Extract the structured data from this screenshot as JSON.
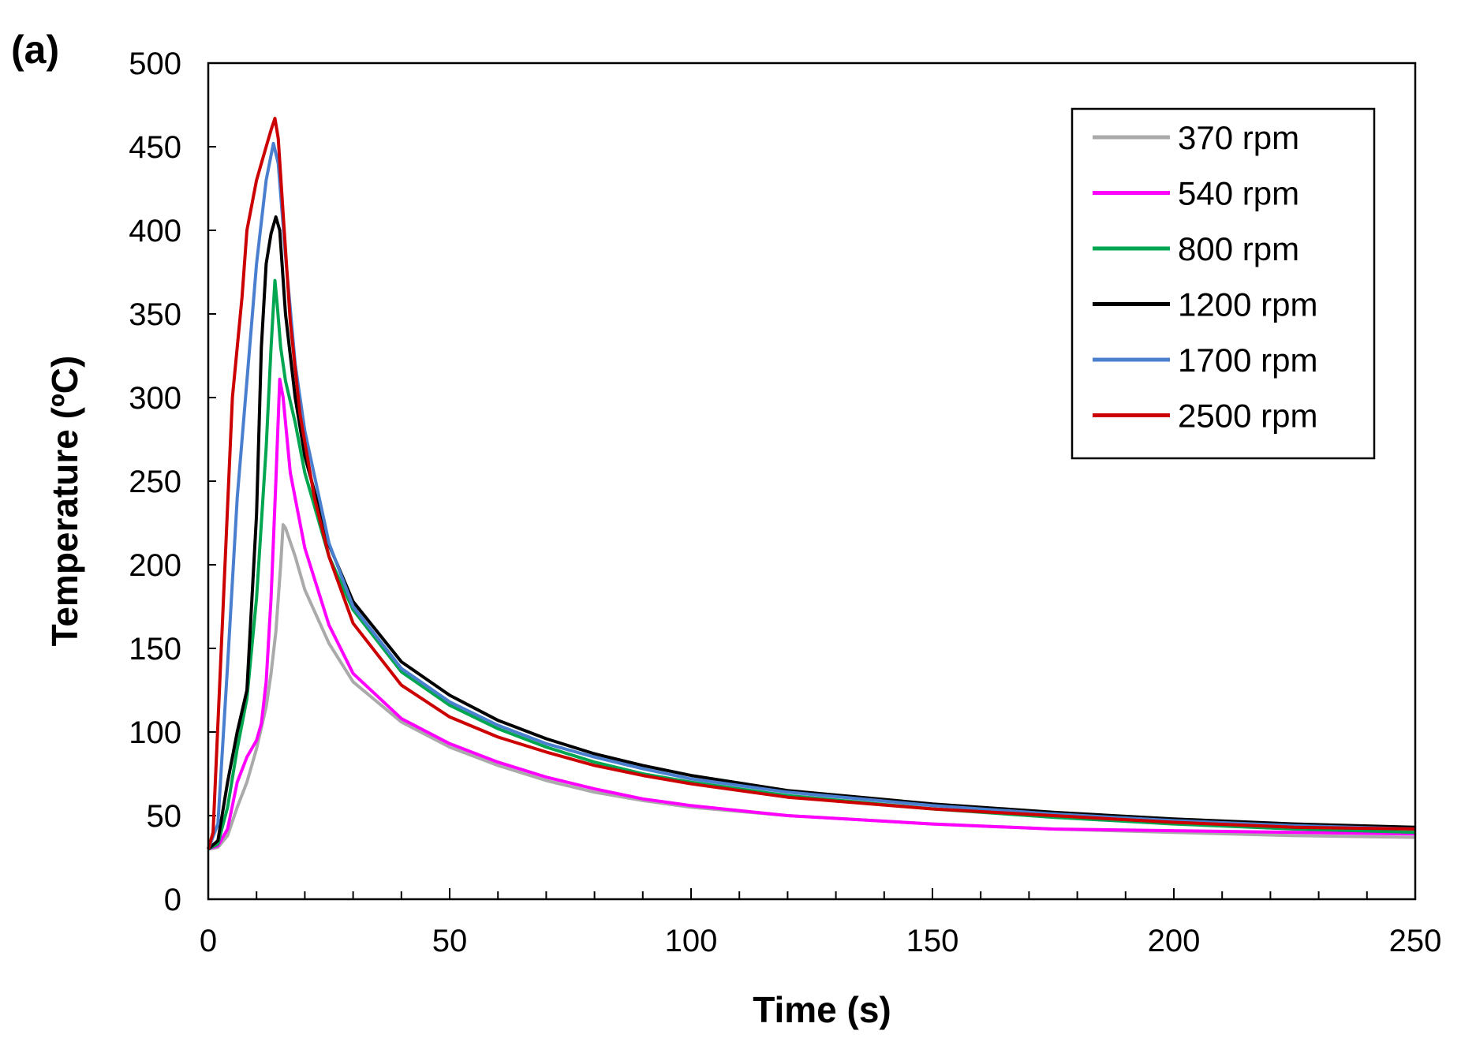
{
  "panel_label": "(a)",
  "chart_data": {
    "type": "line",
    "title": "",
    "xlabel": "Time (s)",
    "ylabel": "Temperature (ºC)",
    "xlim": [
      0,
      250
    ],
    "ylim": [
      0,
      500
    ],
    "xticks": [
      0,
      50,
      100,
      150,
      200,
      250
    ],
    "yticks": [
      0,
      50,
      100,
      150,
      200,
      250,
      300,
      350,
      400,
      450,
      500
    ],
    "x_minor_step": 10,
    "grid": false,
    "legend_position": "top-right",
    "series": [
      {
        "name": "370 rpm",
        "color": "#aaaaaa",
        "points": [
          [
            0,
            30
          ],
          [
            2,
            31
          ],
          [
            4,
            38
          ],
          [
            6,
            55
          ],
          [
            8,
            70
          ],
          [
            10,
            90
          ],
          [
            12,
            115
          ],
          [
            13,
            135
          ],
          [
            14,
            160
          ],
          [
            15,
            200
          ],
          [
            15.5,
            224
          ],
          [
            16,
            222
          ],
          [
            18,
            205
          ],
          [
            20,
            185
          ],
          [
            25,
            153
          ],
          [
            30,
            130
          ],
          [
            40,
            106
          ],
          [
            50,
            91
          ],
          [
            60,
            80
          ],
          [
            70,
            71
          ],
          [
            80,
            64
          ],
          [
            90,
            59
          ],
          [
            100,
            55
          ],
          [
            120,
            50
          ],
          [
            150,
            45
          ],
          [
            175,
            42
          ],
          [
            200,
            40
          ],
          [
            225,
            38
          ],
          [
            250,
            37
          ]
        ]
      },
      {
        "name": "540 rpm",
        "color": "#ff00ff",
        "points": [
          [
            0,
            30
          ],
          [
            2,
            32
          ],
          [
            4,
            42
          ],
          [
            6,
            70
          ],
          [
            8,
            85
          ],
          [
            10,
            95
          ],
          [
            11,
            105
          ],
          [
            12,
            130
          ],
          [
            13,
            180
          ],
          [
            14,
            250
          ],
          [
            14.8,
            311
          ],
          [
            15.5,
            300
          ],
          [
            17,
            255
          ],
          [
            20,
            210
          ],
          [
            25,
            164
          ],
          [
            30,
            135
          ],
          [
            40,
            108
          ],
          [
            50,
            93
          ],
          [
            60,
            82
          ],
          [
            70,
            73
          ],
          [
            80,
            66
          ],
          [
            90,
            60
          ],
          [
            100,
            56
          ],
          [
            120,
            50
          ],
          [
            150,
            45
          ],
          [
            175,
            42
          ],
          [
            200,
            41
          ],
          [
            225,
            40
          ],
          [
            250,
            39
          ]
        ]
      },
      {
        "name": "800 rpm",
        "color": "#00a650",
        "points": [
          [
            0,
            30
          ],
          [
            2,
            33
          ],
          [
            4,
            55
          ],
          [
            6,
            90
          ],
          [
            8,
            120
          ],
          [
            10,
            180
          ],
          [
            12,
            270
          ],
          [
            13,
            330
          ],
          [
            13.8,
            370
          ],
          [
            14.3,
            355
          ],
          [
            15,
            330
          ],
          [
            16,
            310
          ],
          [
            18,
            285
          ],
          [
            20,
            255
          ],
          [
            25,
            205
          ],
          [
            30,
            173
          ],
          [
            40,
            136
          ],
          [
            50,
            116
          ],
          [
            60,
            102
          ],
          [
            70,
            91
          ],
          [
            80,
            82
          ],
          [
            90,
            75
          ],
          [
            100,
            70
          ],
          [
            120,
            62
          ],
          [
            150,
            54
          ],
          [
            175,
            49
          ],
          [
            200,
            45
          ],
          [
            225,
            42
          ],
          [
            250,
            40
          ]
        ]
      },
      {
        "name": "1200 rpm",
        "color": "#000000",
        "points": [
          [
            0,
            30
          ],
          [
            2,
            35
          ],
          [
            4,
            70
          ],
          [
            6,
            100
          ],
          [
            8,
            125
          ],
          [
            10,
            230
          ],
          [
            11,
            330
          ],
          [
            12,
            380
          ],
          [
            13,
            398
          ],
          [
            14,
            408
          ],
          [
            14.8,
            400
          ],
          [
            16,
            350
          ],
          [
            18,
            300
          ],
          [
            20,
            265
          ],
          [
            25,
            212
          ],
          [
            30,
            178
          ],
          [
            40,
            142
          ],
          [
            50,
            122
          ],
          [
            60,
            107
          ],
          [
            70,
            96
          ],
          [
            80,
            87
          ],
          [
            90,
            80
          ],
          [
            100,
            74
          ],
          [
            120,
            65
          ],
          [
            150,
            57
          ],
          [
            175,
            52
          ],
          [
            200,
            48
          ],
          [
            225,
            45
          ],
          [
            250,
            43
          ]
        ]
      },
      {
        "name": "1700 rpm",
        "color": "#4a7fd0",
        "points": [
          [
            0,
            30
          ],
          [
            2,
            45
          ],
          [
            4,
            140
          ],
          [
            6,
            240
          ],
          [
            8,
            310
          ],
          [
            10,
            380
          ],
          [
            12,
            430
          ],
          [
            13.5,
            452
          ],
          [
            14.5,
            440
          ],
          [
            16,
            385
          ],
          [
            18,
            320
          ],
          [
            20,
            280
          ],
          [
            25,
            213
          ],
          [
            30,
            175
          ],
          [
            40,
            138
          ],
          [
            50,
            118
          ],
          [
            60,
            104
          ],
          [
            70,
            93
          ],
          [
            80,
            85
          ],
          [
            90,
            78
          ],
          [
            100,
            72
          ],
          [
            120,
            64
          ],
          [
            150,
            56
          ],
          [
            175,
            51
          ],
          [
            200,
            47
          ],
          [
            225,
            44
          ],
          [
            250,
            42
          ]
        ]
      },
      {
        "name": "2500 rpm",
        "color": "#cc0000",
        "points": [
          [
            0,
            30
          ],
          [
            1,
            40
          ],
          [
            3,
            170
          ],
          [
            5,
            300
          ],
          [
            7,
            360
          ],
          [
            8,
            400
          ],
          [
            9,
            415
          ],
          [
            10,
            430
          ],
          [
            11,
            440
          ],
          [
            12,
            450
          ],
          [
            13,
            460
          ],
          [
            13.8,
            467
          ],
          [
            14.5,
            455
          ],
          [
            15.5,
            410
          ],
          [
            17,
            345
          ],
          [
            19,
            290
          ],
          [
            22,
            240
          ],
          [
            25,
            205
          ],
          [
            30,
            165
          ],
          [
            40,
            128
          ],
          [
            50,
            109
          ],
          [
            60,
            97
          ],
          [
            70,
            88
          ],
          [
            80,
            80
          ],
          [
            90,
            74
          ],
          [
            100,
            69
          ],
          [
            120,
            61
          ],
          [
            150,
            54
          ],
          [
            175,
            50
          ],
          [
            200,
            46
          ],
          [
            225,
            43
          ],
          [
            250,
            42
          ]
        ]
      }
    ]
  }
}
